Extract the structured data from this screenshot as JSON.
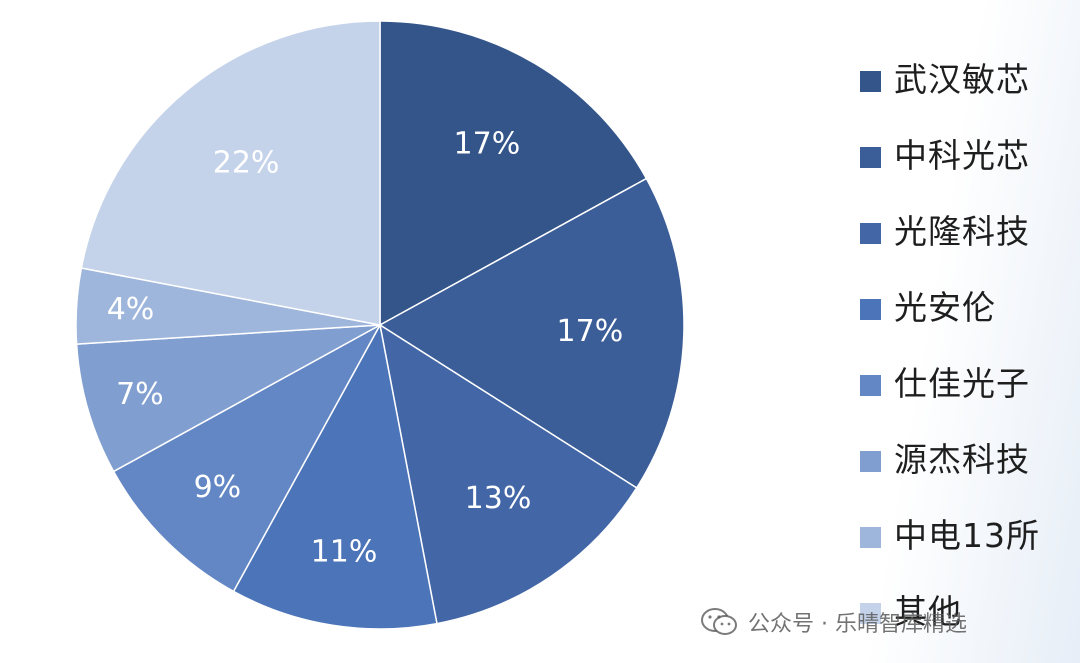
{
  "chart_data": {
    "type": "pie",
    "title": "",
    "start_angle": "12 o'clock",
    "direction": "clockwise",
    "slices": [
      {
        "label": "武汉敏芯",
        "value": 17,
        "display": "17%",
        "color": "#34558a"
      },
      {
        "label": "中科光芯",
        "value": 17,
        "display": "17%",
        "color": "#3b5e98"
      },
      {
        "label": "光隆科技",
        "value": 13,
        "display": "13%",
        "color": "#4266a6"
      },
      {
        "label": "光安伦",
        "value": 11,
        "display": "11%",
        "color": "#4c74b8"
      },
      {
        "label": "仕佳光子",
        "value": 9,
        "display": "9%",
        "color": "#6287c4"
      },
      {
        "label": "源杰科技",
        "value": 7,
        "display": "7%",
        "color": "#809fd0"
      },
      {
        "label": "中电13所",
        "value": 4,
        "display": "4%",
        "color": "#9fb6dc"
      },
      {
        "label": "其他",
        "value": 22,
        "display": "22%",
        "color": "#c5d3ea"
      }
    ],
    "legend_placement": "right"
  },
  "watermark": {
    "text": "公众号 · 乐晴智库精选",
    "icon": "wechat-icon"
  }
}
